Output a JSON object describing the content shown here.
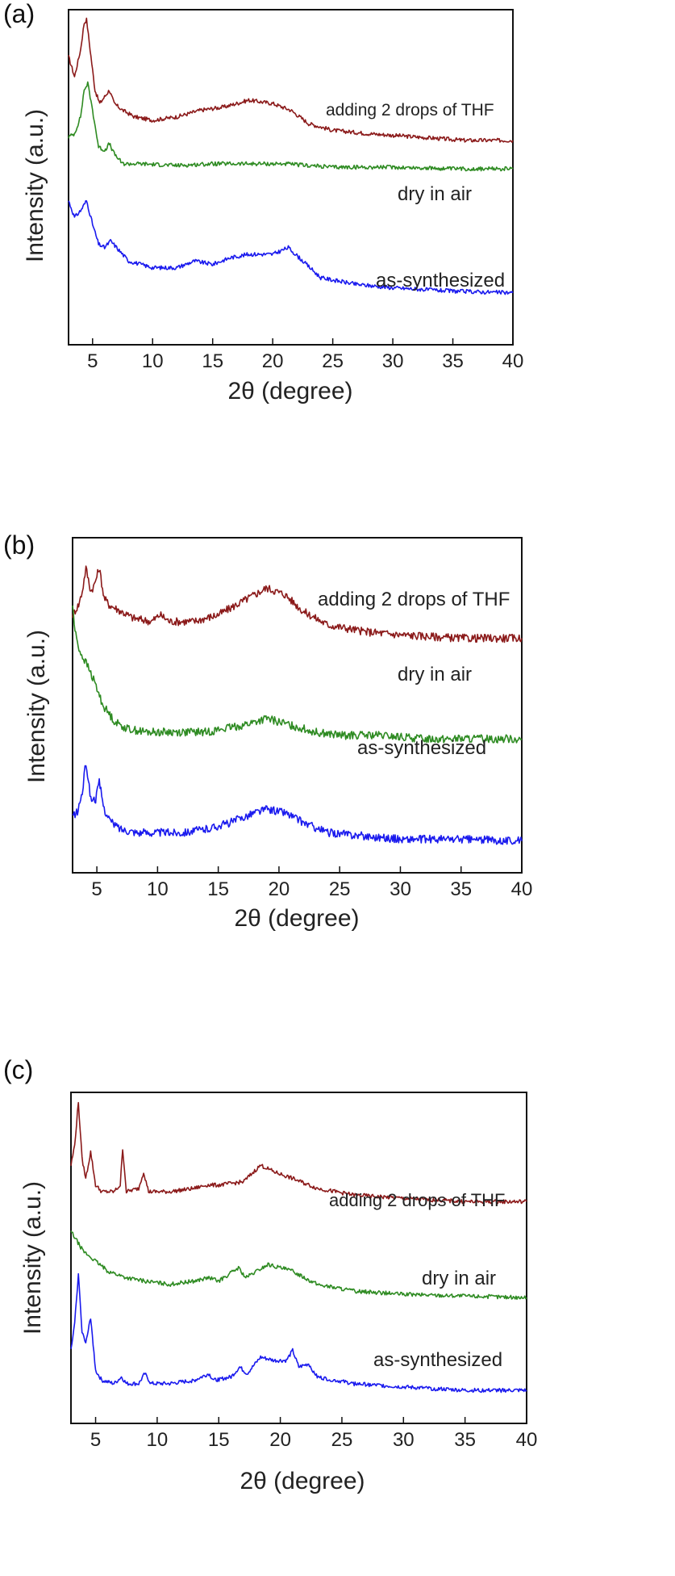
{
  "chart_data": [
    {
      "panel_label": "(a)",
      "type": "line",
      "xlabel": "2θ (degree)",
      "ylabel": "Intensity (a.u.)",
      "xlim": [
        3,
        40
      ],
      "xticks": [
        5,
        10,
        15,
        20,
        25,
        30,
        35,
        40
      ],
      "y_units": "arbitrary (stacked offset)",
      "series": [
        {
          "name": "adding 2 drops of  THF",
          "color": "#8b1a1a",
          "x": [
            3.0,
            3.5,
            4.0,
            4.3,
            4.5,
            4.8,
            5.2,
            5.6,
            6.0,
            6.4,
            6.8,
            7.5,
            8.5,
            10,
            12,
            14,
            16,
            18,
            20,
            21.5,
            23,
            25,
            28,
            32,
            36,
            40
          ],
          "y": [
            0.86,
            0.8,
            0.88,
            0.96,
            0.97,
            0.88,
            0.76,
            0.72,
            0.74,
            0.76,
            0.72,
            0.7,
            0.68,
            0.67,
            0.68,
            0.7,
            0.71,
            0.73,
            0.72,
            0.7,
            0.66,
            0.64,
            0.63,
            0.62,
            0.61,
            0.61
          ]
        },
        {
          "name": "dry in air",
          "color": "#2e8b22",
          "x": [
            3.0,
            3.5,
            4.0,
            4.3,
            4.6,
            5.0,
            5.5,
            6.0,
            6.4,
            6.8,
            7.5,
            9,
            12,
            15,
            18,
            21,
            25,
            30,
            35,
            40
          ],
          "y": [
            0.62,
            0.63,
            0.68,
            0.76,
            0.78,
            0.7,
            0.59,
            0.58,
            0.6,
            0.57,
            0.54,
            0.54,
            0.535,
            0.54,
            0.54,
            0.54,
            0.53,
            0.53,
            0.525,
            0.525
          ]
        },
        {
          "name": "as-synthesized",
          "color": "#1a1aee",
          "x": [
            3.0,
            3.5,
            4.0,
            4.5,
            5.0,
            5.5,
            6.0,
            6.5,
            7.0,
            8.0,
            10,
            12,
            13.5,
            15,
            16.5,
            18,
            20,
            21.3,
            22.5,
            24,
            27,
            30,
            35,
            40
          ],
          "y": [
            0.43,
            0.38,
            0.4,
            0.43,
            0.36,
            0.3,
            0.29,
            0.31,
            0.29,
            0.25,
            0.23,
            0.23,
            0.25,
            0.24,
            0.26,
            0.27,
            0.27,
            0.29,
            0.25,
            0.2,
            0.18,
            0.17,
            0.16,
            0.155
          ]
        }
      ],
      "series_labels": [
        "adding 2 drops of  THF",
        "dry in air",
        "as-synthesized"
      ]
    },
    {
      "panel_label": "(b)",
      "type": "line",
      "xlabel": "2θ (degree)",
      "ylabel": "Intensity (a.u.)",
      "xlim": [
        3,
        40
      ],
      "xticks": [
        5,
        10,
        15,
        20,
        25,
        30,
        35,
        40
      ],
      "y_units": "arbitrary (stacked offset)",
      "series": [
        {
          "name": "adding 2 drops of  THF",
          "color": "#8b1a1a",
          "x": [
            3.0,
            3.5,
            3.8,
            4.1,
            4.5,
            4.8,
            5.2,
            5.6,
            6.0,
            7.0,
            8.0,
            9.5,
            10.2,
            11,
            13,
            15,
            17,
            19,
            20.5,
            22,
            24,
            27,
            30,
            35,
            40
          ],
          "y": [
            0.77,
            0.8,
            0.84,
            0.91,
            0.84,
            0.86,
            0.91,
            0.82,
            0.8,
            0.78,
            0.76,
            0.75,
            0.77,
            0.75,
            0.75,
            0.77,
            0.81,
            0.85,
            0.83,
            0.78,
            0.74,
            0.72,
            0.71,
            0.7,
            0.7
          ]
        },
        {
          "name": "dry in air",
          "color": "#2e8b22",
          "x": [
            3.0,
            3.2,
            3.6,
            4.2,
            4.8,
            5.5,
            6.5,
            7.5,
            9,
            11,
            14,
            17,
            19,
            21,
            23,
            25,
            28,
            32,
            36,
            40
          ],
          "y": [
            0.8,
            0.72,
            0.66,
            0.62,
            0.57,
            0.5,
            0.45,
            0.43,
            0.42,
            0.42,
            0.42,
            0.44,
            0.46,
            0.44,
            0.42,
            0.41,
            0.41,
            0.4,
            0.4,
            0.4
          ]
        },
        {
          "name": "as-synthesized",
          "color": "#1a1aee",
          "x": [
            3.0,
            3.4,
            3.8,
            4.1,
            4.5,
            4.9,
            5.2,
            5.6,
            6.2,
            7.0,
            8.5,
            10,
            12,
            14,
            16,
            18,
            19,
            20.5,
            22,
            24,
            27,
            30,
            35,
            40
          ],
          "y": [
            0.17,
            0.18,
            0.24,
            0.33,
            0.22,
            0.22,
            0.27,
            0.19,
            0.15,
            0.13,
            0.12,
            0.12,
            0.12,
            0.13,
            0.15,
            0.18,
            0.19,
            0.18,
            0.15,
            0.12,
            0.11,
            0.1,
            0.1,
            0.095
          ]
        }
      ],
      "series_labels": [
        "adding 2 drops of  THF",
        "dry in air",
        "as-synthesized"
      ]
    },
    {
      "panel_label": "(c)",
      "type": "line",
      "xlabel": "2θ (degree)",
      "ylabel": "Intensity (a.u.)",
      "xlim": [
        3,
        40
      ],
      "xticks": [
        5,
        10,
        15,
        20,
        25,
        30,
        35,
        40
      ],
      "y_units": "arbitrary (stacked offset)",
      "series": [
        {
          "name": "adding 2 drops of  THF",
          "color": "#8b1a1a",
          "x": [
            3.0,
            3.3,
            3.6,
            3.9,
            4.2,
            4.6,
            5.0,
            5.5,
            6.5,
            7.0,
            7.2,
            7.5,
            8.5,
            8.9,
            9.3,
            11,
            13,
            14,
            15,
            17,
            18.4,
            19.5,
            21,
            23,
            26,
            30,
            35,
            40
          ],
          "y": [
            0.78,
            0.84,
            0.97,
            0.8,
            0.74,
            0.82,
            0.72,
            0.7,
            0.7,
            0.72,
            0.83,
            0.7,
            0.71,
            0.76,
            0.7,
            0.7,
            0.71,
            0.72,
            0.72,
            0.73,
            0.78,
            0.76,
            0.74,
            0.71,
            0.69,
            0.68,
            0.67,
            0.67
          ]
        },
        {
          "name": "dry in air",
          "color": "#2e8b22",
          "x": [
            3.0,
            3.5,
            4.0,
            5.0,
            6.0,
            7.5,
            9,
            11,
            13,
            14.2,
            15,
            16.6,
            17.2,
            19,
            21,
            23,
            26,
            30,
            35,
            40
          ],
          "y": [
            0.58,
            0.55,
            0.52,
            0.49,
            0.46,
            0.44,
            0.43,
            0.42,
            0.43,
            0.44,
            0.43,
            0.47,
            0.44,
            0.48,
            0.46,
            0.42,
            0.4,
            0.39,
            0.385,
            0.38
          ]
        },
        {
          "name": "as-synthesized",
          "color": "#1a1aee",
          "x": [
            3.0,
            3.3,
            3.6,
            3.9,
            4.2,
            4.6,
            5.0,
            5.5,
            6.5,
            7.1,
            7.5,
            8.5,
            9.0,
            9.5,
            11,
            13,
            14.2,
            14.6,
            16,
            16.7,
            17.3,
            18.4,
            19.5,
            20.5,
            21.0,
            21.5,
            22.3,
            23,
            26,
            30,
            35,
            40
          ],
          "y": [
            0.22,
            0.3,
            0.45,
            0.28,
            0.24,
            0.32,
            0.16,
            0.13,
            0.12,
            0.14,
            0.12,
            0.12,
            0.15,
            0.12,
            0.12,
            0.13,
            0.15,
            0.13,
            0.14,
            0.17,
            0.15,
            0.2,
            0.19,
            0.19,
            0.22,
            0.17,
            0.18,
            0.14,
            0.12,
            0.11,
            0.1,
            0.1
          ]
        }
      ],
      "series_labels": [
        "adding 2 drops of  THF",
        "dry in air",
        "as-synthesized"
      ]
    }
  ]
}
